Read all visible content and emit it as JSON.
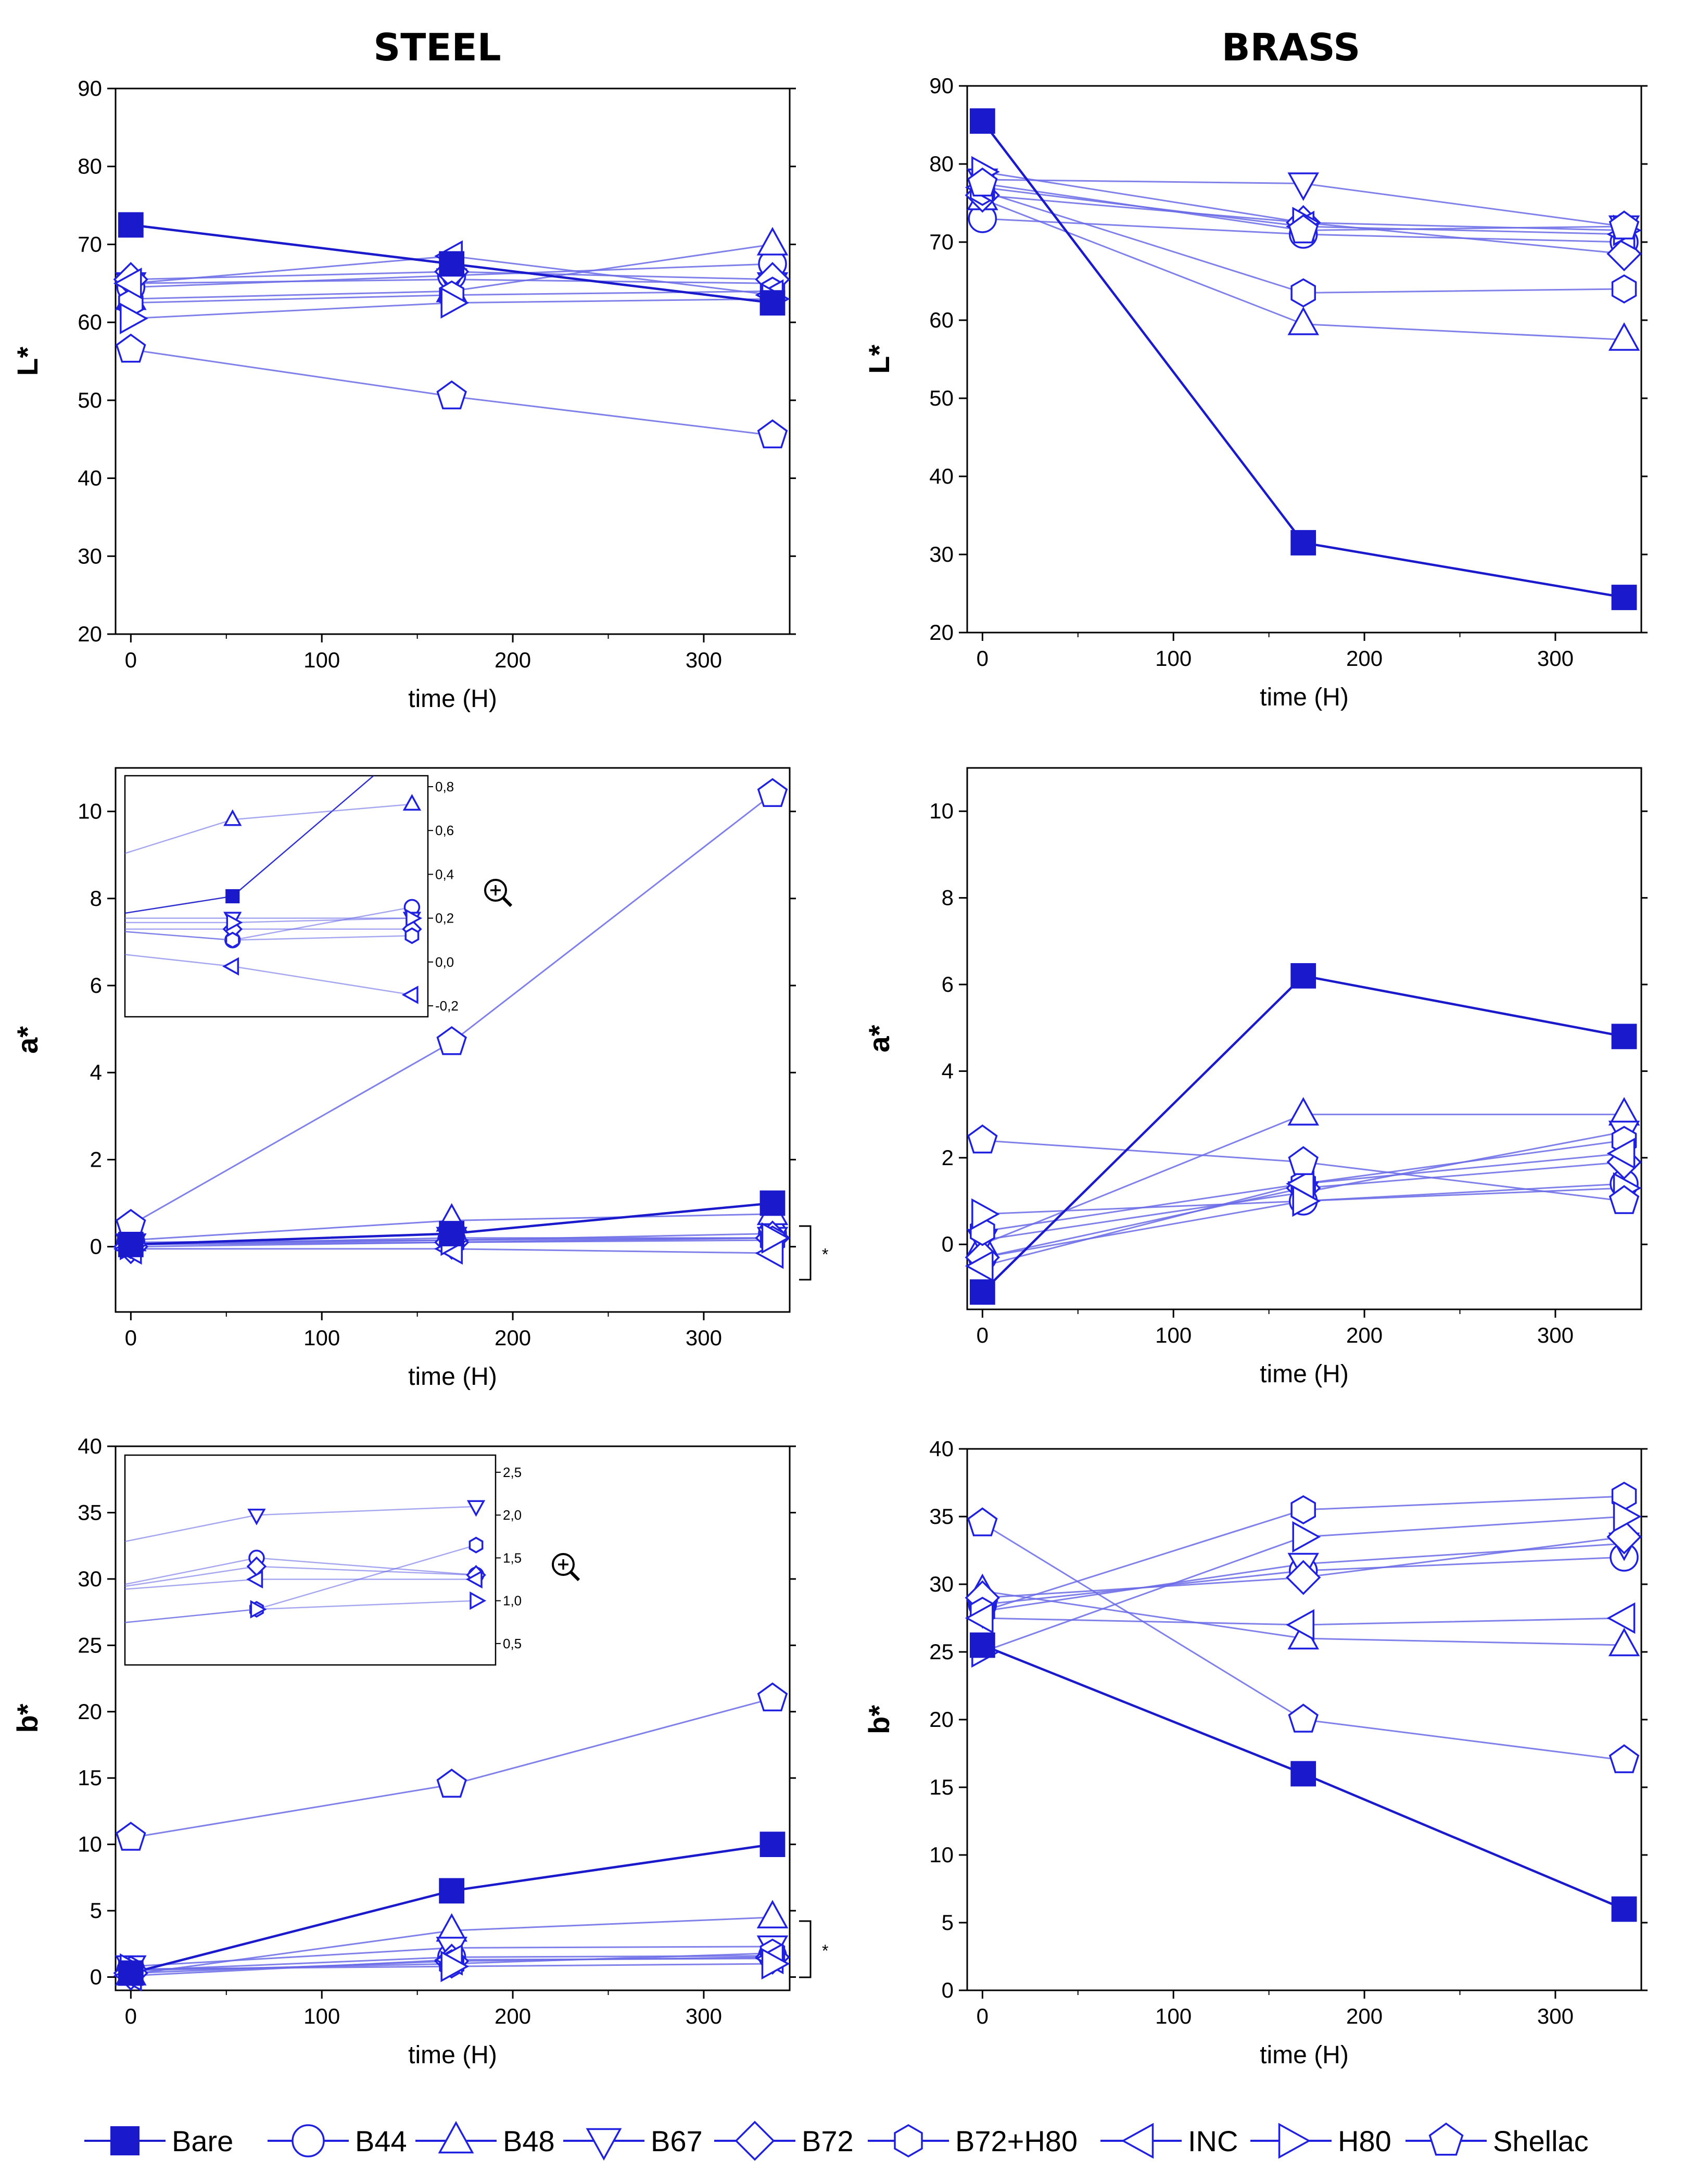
{
  "colors": {
    "bare": "#1a1acc",
    "series": "#6a6ae8",
    "marker": "#2020e0"
  },
  "headers": {
    "steel": "STEEL",
    "brass": "BRASS"
  },
  "icons": {
    "zoom": "magnifier-plus-icon"
  },
  "bracket_mark": "*",
  "legend": [
    {
      "name": "Bare",
      "marker": "square-filled"
    },
    {
      "name": "B44",
      "marker": "circle"
    },
    {
      "name": "B48",
      "marker": "triangle-up"
    },
    {
      "name": "B67",
      "marker": "triangle-down"
    },
    {
      "name": "B72",
      "marker": "diamond"
    },
    {
      "name": "B72+H80",
      "marker": "hexagon"
    },
    {
      "name": "INC",
      "marker": "triangle-left"
    },
    {
      "name": "H80",
      "marker": "triangle-right"
    },
    {
      "name": "Shellac",
      "marker": "pentagon"
    }
  ],
  "chart_data": [
    {
      "id": "steel_L",
      "type": "line",
      "xlabel": "time (H)",
      "ylabel": "L*",
      "xlim": [
        -8,
        345
      ],
      "ylim": [
        20,
        90
      ],
      "xticks": [
        0,
        100,
        200,
        300
      ],
      "yticks": [
        20,
        30,
        40,
        50,
        60,
        70,
        80,
        90
      ],
      "x": [
        0,
        168,
        336
      ],
      "series": [
        {
          "name": "Bare",
          "values": [
            72.5,
            67.5,
            62.5
          ]
        },
        {
          "name": "B44",
          "values": [
            64.5,
            66.0,
            67.5
          ]
        },
        {
          "name": "B48",
          "values": [
            63.0,
            64.0,
            70.0
          ]
        },
        {
          "name": "B67",
          "values": [
            65.0,
            65.5,
            65.0
          ]
        },
        {
          "name": "B72",
          "values": [
            65.5,
            66.5,
            65.5
          ]
        },
        {
          "name": "B72+H80",
          "values": [
            62.5,
            63.5,
            64.0
          ]
        },
        {
          "name": "INC",
          "values": [
            65.0,
            68.5,
            63.5
          ]
        },
        {
          "name": "H80",
          "values": [
            60.5,
            62.5,
            63.0
          ]
        },
        {
          "name": "Shellac",
          "values": [
            56.5,
            50.5,
            45.5
          ]
        }
      ]
    },
    {
      "id": "brass_L",
      "type": "line",
      "xlabel": "time (H)",
      "ylabel": "L*",
      "xlim": [
        -8,
        345
      ],
      "ylim": [
        20,
        90
      ],
      "xticks": [
        0,
        100,
        200,
        300
      ],
      "yticks": [
        20,
        30,
        40,
        50,
        60,
        70,
        80,
        90
      ],
      "x": [
        0,
        168,
        336
      ],
      "series": [
        {
          "name": "Bare",
          "values": [
            85.5,
            31.5,
            24.5
          ]
        },
        {
          "name": "B44",
          "values": [
            73.0,
            71.0,
            70.0
          ]
        },
        {
          "name": "B48",
          "values": [
            75.5,
            59.5,
            57.5
          ]
        },
        {
          "name": "B67",
          "values": [
            78.0,
            77.5,
            72.0
          ]
        },
        {
          "name": "B72",
          "values": [
            76.0,
            72.5,
            68.5
          ]
        },
        {
          "name": "B72+H80",
          "values": [
            76.5,
            63.5,
            64.0
          ]
        },
        {
          "name": "INC",
          "values": [
            77.0,
            72.0,
            71.0
          ]
        },
        {
          "name": "H80",
          "values": [
            79.0,
            72.5,
            71.5
          ]
        },
        {
          "name": "Shellac",
          "values": [
            77.5,
            71.5,
            72.0
          ]
        }
      ]
    },
    {
      "id": "steel_a",
      "type": "line",
      "xlabel": "time (H)",
      "ylabel": "a*",
      "xlim": [
        -8,
        345
      ],
      "ylim": [
        -1.5,
        11
      ],
      "xticks": [
        0,
        100,
        200,
        300
      ],
      "yticks": [
        0,
        2,
        4,
        6,
        8,
        10
      ],
      "x": [
        0,
        168,
        336
      ],
      "series": [
        {
          "name": "Bare",
          "values": [
            0.05,
            0.3,
            1.0
          ]
        },
        {
          "name": "B44",
          "values": [
            0.1,
            0.15,
            0.3
          ]
        },
        {
          "name": "B48",
          "values": [
            0.15,
            0.6,
            0.75
          ]
        },
        {
          "name": "B67",
          "values": [
            0.05,
            0.2,
            0.2
          ]
        },
        {
          "name": "B72",
          "values": [
            0.0,
            0.1,
            0.2
          ]
        },
        {
          "name": "B72+H80",
          "values": [
            0.05,
            0.1,
            0.15
          ]
        },
        {
          "name": "INC",
          "values": [
            -0.05,
            -0.05,
            -0.15
          ]
        },
        {
          "name": "H80",
          "values": [
            0.05,
            0.15,
            0.2
          ]
        },
        {
          "name": "Shellac",
          "values": [
            0.5,
            4.7,
            10.4
          ]
        }
      ],
      "inset": {
        "yticks": [
          "0,8",
          "0,6",
          "0,4",
          "0,2",
          "0,0",
          "-0,2"
        ],
        "ylim": [
          -0.25,
          0.85
        ],
        "series": [
          {
            "name": "Bare",
            "values": [
              0.2,
              0.3,
              1.0
            ]
          },
          {
            "name": "B44",
            "values": [
              0.15,
              0.1,
              0.25
            ]
          },
          {
            "name": "B48",
            "values": [
              0.45,
              0.65,
              0.72
            ]
          },
          {
            "name": "B67",
            "values": [
              0.2,
              0.2,
              0.2
            ]
          },
          {
            "name": "B72",
            "values": [
              0.15,
              0.15,
              0.15
            ]
          },
          {
            "name": "B72+H80",
            "values": [
              0.15,
              0.1,
              0.12
            ]
          },
          {
            "name": "INC",
            "values": [
              0.05,
              -0.02,
              -0.15
            ]
          },
          {
            "name": "H80",
            "values": [
              0.18,
              0.18,
              0.2
            ]
          }
        ]
      }
    },
    {
      "id": "brass_a",
      "type": "line",
      "xlabel": "time (H)",
      "ylabel": "a*",
      "xlim": [
        -8,
        345
      ],
      "ylim": [
        -1.5,
        11
      ],
      "xticks": [
        0,
        100,
        200,
        300
      ],
      "yticks": [
        0,
        2,
        4,
        6,
        8,
        10
      ],
      "x": [
        0,
        168,
        336
      ],
      "series": [
        {
          "name": "Bare",
          "values": [
            -1.1,
            6.2,
            4.8
          ]
        },
        {
          "name": "B44",
          "values": [
            -0.3,
            1.0,
            1.4
          ]
        },
        {
          "name": "B48",
          "values": [
            0.0,
            3.0,
            3.0
          ]
        },
        {
          "name": "B67",
          "values": [
            0.1,
            1.2,
            2.6
          ]
        },
        {
          "name": "B72",
          "values": [
            -0.3,
            1.3,
            1.9
          ]
        },
        {
          "name": "B72+H80",
          "values": [
            0.3,
            1.4,
            2.4
          ]
        },
        {
          "name": "INC",
          "values": [
            -0.5,
            1.4,
            2.1
          ]
        },
        {
          "name": "H80",
          "values": [
            0.7,
            1.0,
            1.3
          ]
        },
        {
          "name": "Shellac",
          "values": [
            2.4,
            1.9,
            1.0
          ]
        }
      ]
    },
    {
      "id": "steel_b",
      "type": "line",
      "xlabel": "time (H)",
      "ylabel": "b*",
      "xlim": [
        -8,
        345
      ],
      "ylim": [
        -1,
        40
      ],
      "xticks": [
        0,
        100,
        200,
        300
      ],
      "yticks": [
        0,
        5,
        10,
        15,
        20,
        25,
        30,
        35,
        40
      ],
      "x": [
        0,
        168,
        336
      ],
      "series": [
        {
          "name": "Bare",
          "values": [
            0.3,
            6.5,
            10.0
          ]
        },
        {
          "name": "B44",
          "values": [
            0.5,
            1.5,
            1.6
          ]
        },
        {
          "name": "B48",
          "values": [
            0.2,
            3.5,
            4.5
          ]
        },
        {
          "name": "B67",
          "values": [
            0.8,
            2.2,
            2.3
          ]
        },
        {
          "name": "B72",
          "values": [
            0.3,
            1.2,
            1.5
          ]
        },
        {
          "name": "B72+H80",
          "values": [
            0.5,
            1.0,
            1.8
          ]
        },
        {
          "name": "INC",
          "values": [
            0.1,
            1.3,
            1.4
          ]
        },
        {
          "name": "H80",
          "values": [
            0.6,
            0.8,
            1.0
          ]
        },
        {
          "name": "Shellac",
          "values": [
            10.5,
            14.5,
            21.0
          ]
        }
      ],
      "inset": {
        "yticks": [
          "2,5",
          "2,0",
          "1,5",
          "1,0",
          "0,5"
        ],
        "ylim": [
          0.25,
          2.7
        ],
        "series": [
          {
            "name": "B44",
            "values": [
              1.1,
              1.5,
              1.3
            ]
          },
          {
            "name": "B67",
            "values": [
              1.6,
              2.0,
              2.1
            ]
          },
          {
            "name": "B72",
            "values": [
              1.1,
              1.4,
              1.3
            ]
          },
          {
            "name": "B72+H80",
            "values": [
              0.7,
              0.9,
              1.65
            ]
          },
          {
            "name": "INC",
            "values": [
              1.1,
              1.25,
              1.25
            ]
          },
          {
            "name": "H80",
            "values": [
              0.7,
              0.9,
              1.0
            ]
          }
        ]
      }
    },
    {
      "id": "brass_b",
      "type": "line",
      "xlabel": "time (H)",
      "ylabel": "b*",
      "xlim": [
        -8,
        345
      ],
      "ylim": [
        0,
        40
      ],
      "xticks": [
        0,
        100,
        200,
        300
      ],
      "yticks": [
        0,
        5,
        10,
        15,
        20,
        25,
        30,
        35,
        40
      ],
      "x": [
        0,
        168,
        336
      ],
      "series": [
        {
          "name": "Bare",
          "values": [
            25.5,
            16.0,
            6.0
          ]
        },
        {
          "name": "B44",
          "values": [
            28.5,
            31.0,
            32.0
          ]
        },
        {
          "name": "B48",
          "values": [
            29.5,
            26.0,
            25.5
          ]
        },
        {
          "name": "B67",
          "values": [
            28.0,
            31.5,
            33.0
          ]
        },
        {
          "name": "B72",
          "values": [
            29.0,
            30.5,
            33.5
          ]
        },
        {
          "name": "B72+H80",
          "values": [
            28.0,
            35.5,
            36.5
          ]
        },
        {
          "name": "INC",
          "values": [
            27.5,
            27.0,
            27.5
          ]
        },
        {
          "name": "H80",
          "values": [
            25.0,
            33.5,
            35.0
          ]
        },
        {
          "name": "Shellac",
          "values": [
            34.5,
            20.0,
            17.0
          ]
        }
      ]
    }
  ]
}
